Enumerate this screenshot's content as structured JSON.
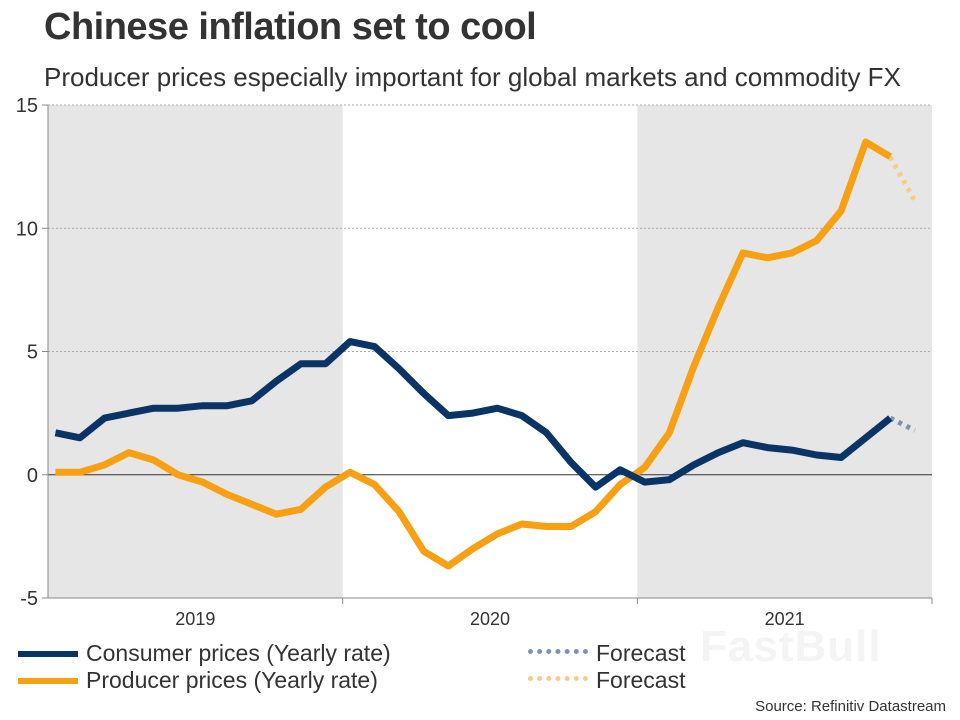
{
  "title": "Chinese inflation set to cool",
  "subtitle": "Producer prices especially important for global markets and commodity FX",
  "source": "Source: Refinitiv Datastream",
  "watermark": "FastBull",
  "colors": {
    "consumer": "#0b3466",
    "producer": "#f7a013",
    "consumer_forecast": "#7e93ad",
    "producer_forecast": "#f5cc8b",
    "band": "#e6e6e6"
  },
  "legend": [
    {
      "label": "Consumer prices (Yearly rate)",
      "style": "solid",
      "series": "consumer"
    },
    {
      "label": "Producer prices (Yearly rate)",
      "style": "solid",
      "series": "producer"
    },
    {
      "label": "Forecast",
      "style": "dotted",
      "series": "consumer_forecast"
    },
    {
      "label": "Forecast",
      "style": "dotted",
      "series": "producer_forecast"
    }
  ],
  "chart_data": {
    "type": "line",
    "title": "Chinese inflation set to cool",
    "subtitle": "Producer prices especially important for global markets and commodity FX",
    "xlabel": "",
    "ylabel": "",
    "ylim": [
      -5,
      15
    ],
    "yticks": [
      15,
      10,
      5,
      0,
      -5
    ],
    "x_categories": [
      "2019",
      "2020",
      "2021"
    ],
    "months_per_year": 12,
    "grid": true,
    "legend_position": "bottom",
    "series": [
      {
        "name": "Consumer prices (Yearly rate)",
        "values": [
          1.7,
          1.5,
          2.3,
          2.5,
          2.7,
          2.7,
          2.8,
          2.8,
          3.0,
          3.8,
          4.5,
          4.5,
          5.4,
          5.2,
          4.3,
          3.3,
          2.4,
          2.5,
          2.7,
          2.4,
          1.7,
          0.5,
          -0.5,
          0.2,
          -0.3,
          -0.2,
          0.4,
          0.9,
          1.3,
          1.1,
          1.0,
          0.8,
          0.7,
          1.5,
          2.3
        ]
      },
      {
        "name": "Producer prices (Yearly rate)",
        "values": [
          0.1,
          0.1,
          0.4,
          0.9,
          0.6,
          0.0,
          -0.3,
          -0.8,
          -1.2,
          -1.6,
          -1.4,
          -0.5,
          0.1,
          -0.4,
          -1.5,
          -3.1,
          -3.7,
          -3.0,
          -2.4,
          -2.0,
          -2.1,
          -2.1,
          -1.5,
          -0.4,
          0.3,
          1.7,
          4.4,
          6.8,
          9.0,
          8.8,
          9.0,
          9.5,
          10.7,
          13.5,
          12.9
        ]
      },
      {
        "name": "Consumer Forecast",
        "start_index": 34,
        "values": [
          2.3,
          1.8
        ]
      },
      {
        "name": "Producer Forecast",
        "start_index": 34,
        "values": [
          12.9,
          11.1
        ]
      }
    ]
  }
}
